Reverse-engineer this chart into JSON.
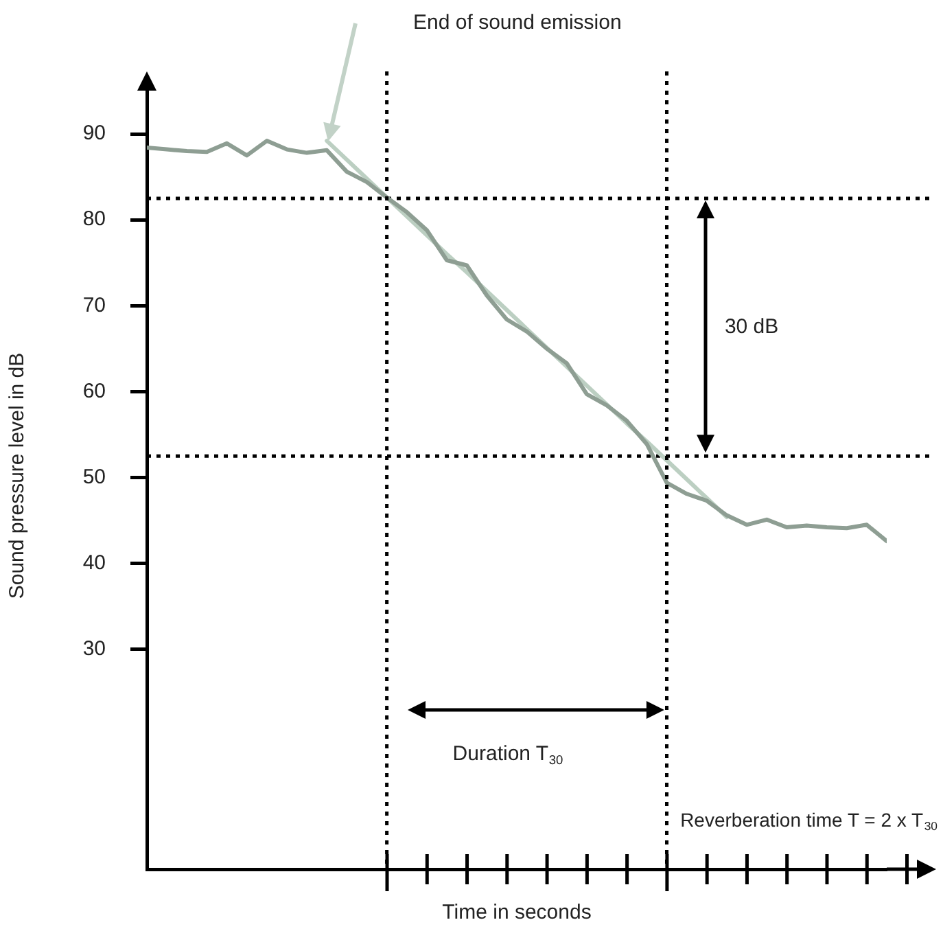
{
  "chart_data": {
    "type": "line",
    "xlabel": "Time in seconds",
    "ylabel": "Sound pressure level in dB",
    "categories": [
      null,
      null,
      null,
      null,
      null,
      null,
      null,
      null,
      null,
      null,
      null,
      null,
      null,
      null,
      null,
      null,
      null,
      null,
      null,
      null,
      null,
      null,
      null,
      null,
      null,
      null,
      null,
      null,
      null,
      null,
      null,
      null,
      null,
      null,
      null,
      null,
      null,
      null
    ],
    "ylim": [
      4.4,
      96
    ],
    "yticks": [
      30,
      40,
      50,
      60,
      70,
      80,
      90
    ],
    "tick_labels": "y",
    "grid": false,
    "legend": false,
    "marker": "none",
    "line_style": "solid",
    "series": [
      {
        "type": "line",
        "color": "#8e9e93",
        "values": [
          88.4,
          88.2,
          88.0,
          87.9,
          88.9,
          87.5,
          89.2,
          88.2,
          87.8,
          88.1,
          85.6,
          84.4,
          82.6,
          80.9,
          78.8,
          75.3,
          74.7,
          71.2,
          68.4,
          67.0,
          65.0,
          63.3,
          59.7,
          58.4,
          56.6,
          53.9,
          49.4,
          48.1,
          47.3,
          45.6,
          44.5,
          45.1,
          44.2,
          44.4,
          44.2,
          44.1,
          44.5,
          42.6
        ]
      },
      {
        "type": "line",
        "color": "#bccfc2",
        "values": [
          null,
          null,
          null,
          null,
          null,
          null,
          null,
          null,
          null,
          89.2,
          87.0,
          84.8,
          82.6,
          80.4,
          78.2,
          76.0,
          73.9,
          71.7,
          69.5,
          67.3,
          65.1,
          62.9,
          60.7,
          58.5,
          56.3,
          54.2,
          52.0,
          49.8,
          47.6,
          45.4,
          null,
          null,
          null,
          null,
          null,
          null,
          null,
          null
        ]
      }
    ],
    "ref_lines": [
      {
        "axis": "y",
        "value": 82.5,
        "color": "#000000",
        "line_style": "dotted"
      },
      {
        "axis": "y",
        "value": 52.5,
        "color": "#000000",
        "line_style": "dotted"
      }
    ],
    "annotations": [
      "End of sound emission",
      "30 dB",
      "Duration T$_{30}$",
      "Reverberation time T = 2 x T$_{30}$"
    ]
  }
}
